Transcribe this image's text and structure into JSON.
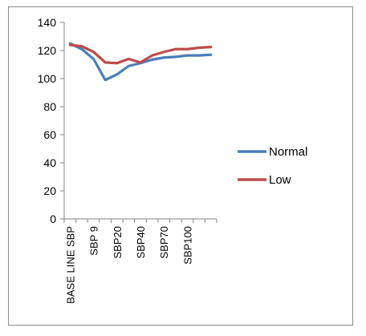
{
  "chart_data": {
    "type": "line",
    "title": "",
    "xlabel": "",
    "ylabel": "",
    "ylim": [
      0,
      140
    ],
    "yticks": [
      0,
      20,
      40,
      60,
      80,
      100,
      120,
      140
    ],
    "grid": false,
    "legend_position": "right",
    "x_labels_shown": [
      {
        "index": 0,
        "label": "BASE LINE SBP"
      },
      {
        "index": 2,
        "label": "SBP 9"
      },
      {
        "index": 4,
        "label": "SBP20"
      },
      {
        "index": 6,
        "label": "SBP40"
      },
      {
        "index": 8,
        "label": "SBP70"
      },
      {
        "index": 10,
        "label": "SBP100"
      }
    ],
    "point_count": 13,
    "series": [
      {
        "name": "Normal",
        "color": "#4a7ebb",
        "values": [
          125,
          121,
          114,
          99,
          103,
          109,
          111,
          113.5,
          115,
          115.5,
          116.5,
          116.5,
          117
        ]
      },
      {
        "name": "Low",
        "color": "#be4b48",
        "values": [
          124,
          123,
          119,
          111.5,
          111,
          114,
          111.5,
          116.5,
          119,
          121,
          121,
          122,
          122.5
        ]
      }
    ]
  }
}
